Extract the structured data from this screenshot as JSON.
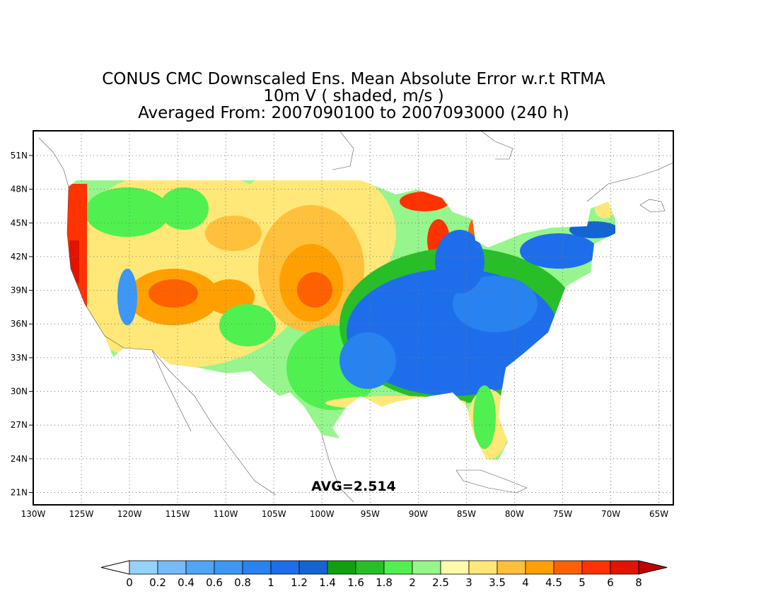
{
  "title": {
    "line1": "CONUS CMC Downscaled Ens. Mean Absolute Error w.r.t RTMA",
    "line2": "10m V ( shaded, m/s )",
    "line3": "Averaged From: 2007090100 to 2007093000 (240 h)"
  },
  "average_label": "AVG=2.514",
  "axes": {
    "lon_labels": [
      "130W",
      "125W",
      "120W",
      "115W",
      "110W",
      "105W",
      "100W",
      "95W",
      "90W",
      "85W",
      "80W",
      "75W",
      "70W",
      "65W"
    ],
    "lat_labels": [
      "51N",
      "48N",
      "45N",
      "42N",
      "39N",
      "36N",
      "33N",
      "30N",
      "27N",
      "24N",
      "21N"
    ],
    "lon_range": [
      -130,
      -63.5
    ],
    "lat_range": [
      19.9,
      53.2
    ],
    "grid": "dotted"
  },
  "colorbar": {
    "labels": [
      "0",
      "0.2",
      "0.4",
      "0.6",
      "0.8",
      "1",
      "1.2",
      "1.4",
      "1.6",
      "1.8",
      "2",
      "2.5",
      "3",
      "3.5",
      "4",
      "4.5",
      "5",
      "6",
      "8"
    ],
    "colors": [
      "#96d2fa",
      "#78b9fa",
      "#50a5f5",
      "#3c97f5",
      "#2882f0",
      "#1e6eeb",
      "#1464d2",
      "#0fa00f",
      "#28be28",
      "#50f050",
      "#96f58c",
      "#fffaaa",
      "#ffe878",
      "#ffc03c",
      "#ffa000",
      "#ff6000",
      "#ff3200",
      "#e11400",
      "#c00000"
    ],
    "under_color": "#ffffff",
    "over_color": "#c00000"
  }
}
